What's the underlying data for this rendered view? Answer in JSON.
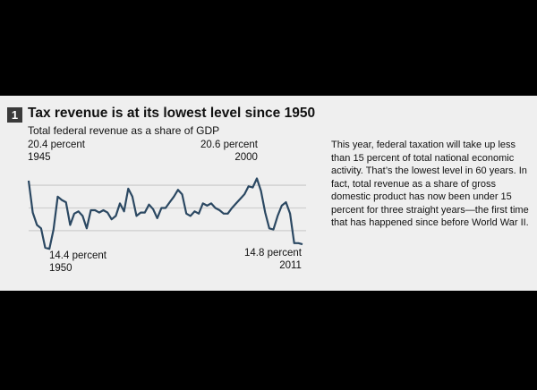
{
  "header": {
    "number": "1",
    "title": "Tax revenue is at its lowest level since 1950",
    "subtitle": "Total federal revenue as a share of GDP"
  },
  "body_text": "This year, federal taxation will take up less than 15 percent of total national economic activity. That’s the lowest level in 60 years. In fact, total revenue as a share of gross domestic product has now been under 15 percent for three straight years—the first time that has happened since before World War II.",
  "annotations": [
    {
      "value_label": "20.4 percent",
      "year_label": "1945"
    },
    {
      "value_label": "14.4 percent",
      "year_label": "1950"
    },
    {
      "value_label": "20.6 percent",
      "year_label": "2000"
    },
    {
      "value_label": "14.8 percent",
      "year_label": "2011"
    }
  ],
  "colors": {
    "line": "#2b4862",
    "grid": "#cfcfcf",
    "panel": "#efefef",
    "page": "#000000"
  },
  "chart_data": {
    "type": "line",
    "title": "Tax revenue is at its lowest level since 1950",
    "subtitle": "Total federal revenue as a share of GDP",
    "xlim": [
      1945,
      2011
    ],
    "ylim": [
      14,
      21
    ],
    "gridlines": [
      16,
      18,
      20
    ],
    "grid": true,
    "x": [
      1945,
      1946,
      1947,
      1948,
      1949,
      1950,
      1951,
      1952,
      1953,
      1954,
      1955,
      1956,
      1957,
      1958,
      1959,
      1960,
      1961,
      1962,
      1963,
      1964,
      1965,
      1966,
      1967,
      1968,
      1969,
      1970,
      1971,
      1972,
      1973,
      1974,
      1975,
      1976,
      1977,
      1978,
      1979,
      1980,
      1981,
      1982,
      1983,
      1984,
      1985,
      1986,
      1987,
      1988,
      1989,
      1990,
      1991,
      1992,
      1993,
      1994,
      1995,
      1996,
      1997,
      1998,
      1999,
      2000,
      2001,
      2002,
      2003,
      2004,
      2005,
      2006,
      2007,
      2008,
      2009,
      2010,
      2011
    ],
    "y": [
      20.4,
      17.6,
      16.5,
      16.2,
      14.5,
      14.4,
      16.1,
      19.0,
      18.7,
      18.5,
      16.5,
      17.5,
      17.7,
      17.3,
      16.2,
      17.8,
      17.8,
      17.6,
      17.8,
      17.6,
      17.0,
      17.3,
      18.4,
      17.7,
      19.7,
      19.0,
      17.3,
      17.6,
      17.6,
      18.3,
      17.9,
      17.1,
      18.0,
      18.0,
      18.5,
      19.0,
      19.6,
      19.2,
      17.5,
      17.3,
      17.7,
      17.5,
      18.4,
      18.2,
      18.4,
      18.0,
      17.8,
      17.5,
      17.5,
      18.0,
      18.4,
      18.8,
      19.2,
      19.9,
      19.8,
      20.6,
      19.5,
      17.6,
      16.2,
      16.1,
      17.3,
      18.2,
      18.5,
      17.5,
      14.9,
      14.9,
      14.8
    ]
  }
}
